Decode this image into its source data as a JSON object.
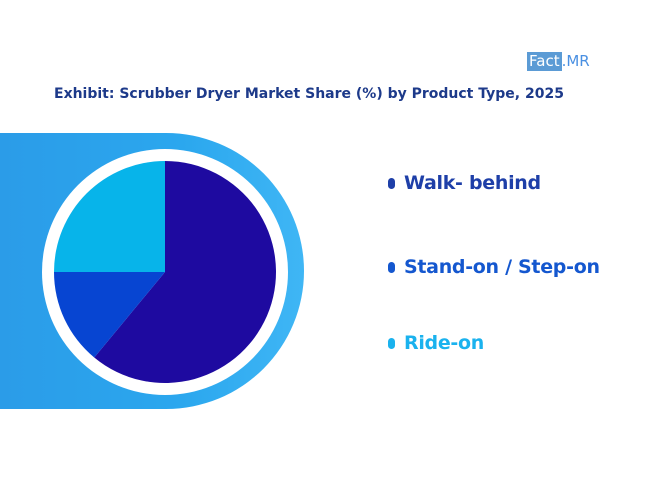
{
  "logo": {
    "box_text": "Fact",
    "rest_text": ".MR"
  },
  "title": "Exhibit: Scrubber Dryer Market Share (%) by Product Type, 2025",
  "chart_data": {
    "type": "pie",
    "title": "Exhibit: Scrubber Dryer Market Share (%) by Product Type, 2025",
    "categories": [
      "Walk- behind",
      "Stand-on / Step-on",
      "Ride-on"
    ],
    "values": [
      61,
      14,
      25
    ],
    "colors": [
      "#1e0aa0",
      "#0745d2",
      "#07b4ea"
    ],
    "start_angle_deg": 0,
    "direction": "clockwise-from-top",
    "legend_position": "right"
  },
  "legend": {
    "items": [
      {
        "label": "Walk- behind",
        "color": "#1e3fa8"
      },
      {
        "label": "Stand-on / Step-on",
        "color": "#1457cf"
      },
      {
        "label": "Ride-on",
        "color": "#1ab2ee"
      }
    ]
  },
  "panel_color": "#2ba3ec",
  "pie_border_color": "#ffffff"
}
